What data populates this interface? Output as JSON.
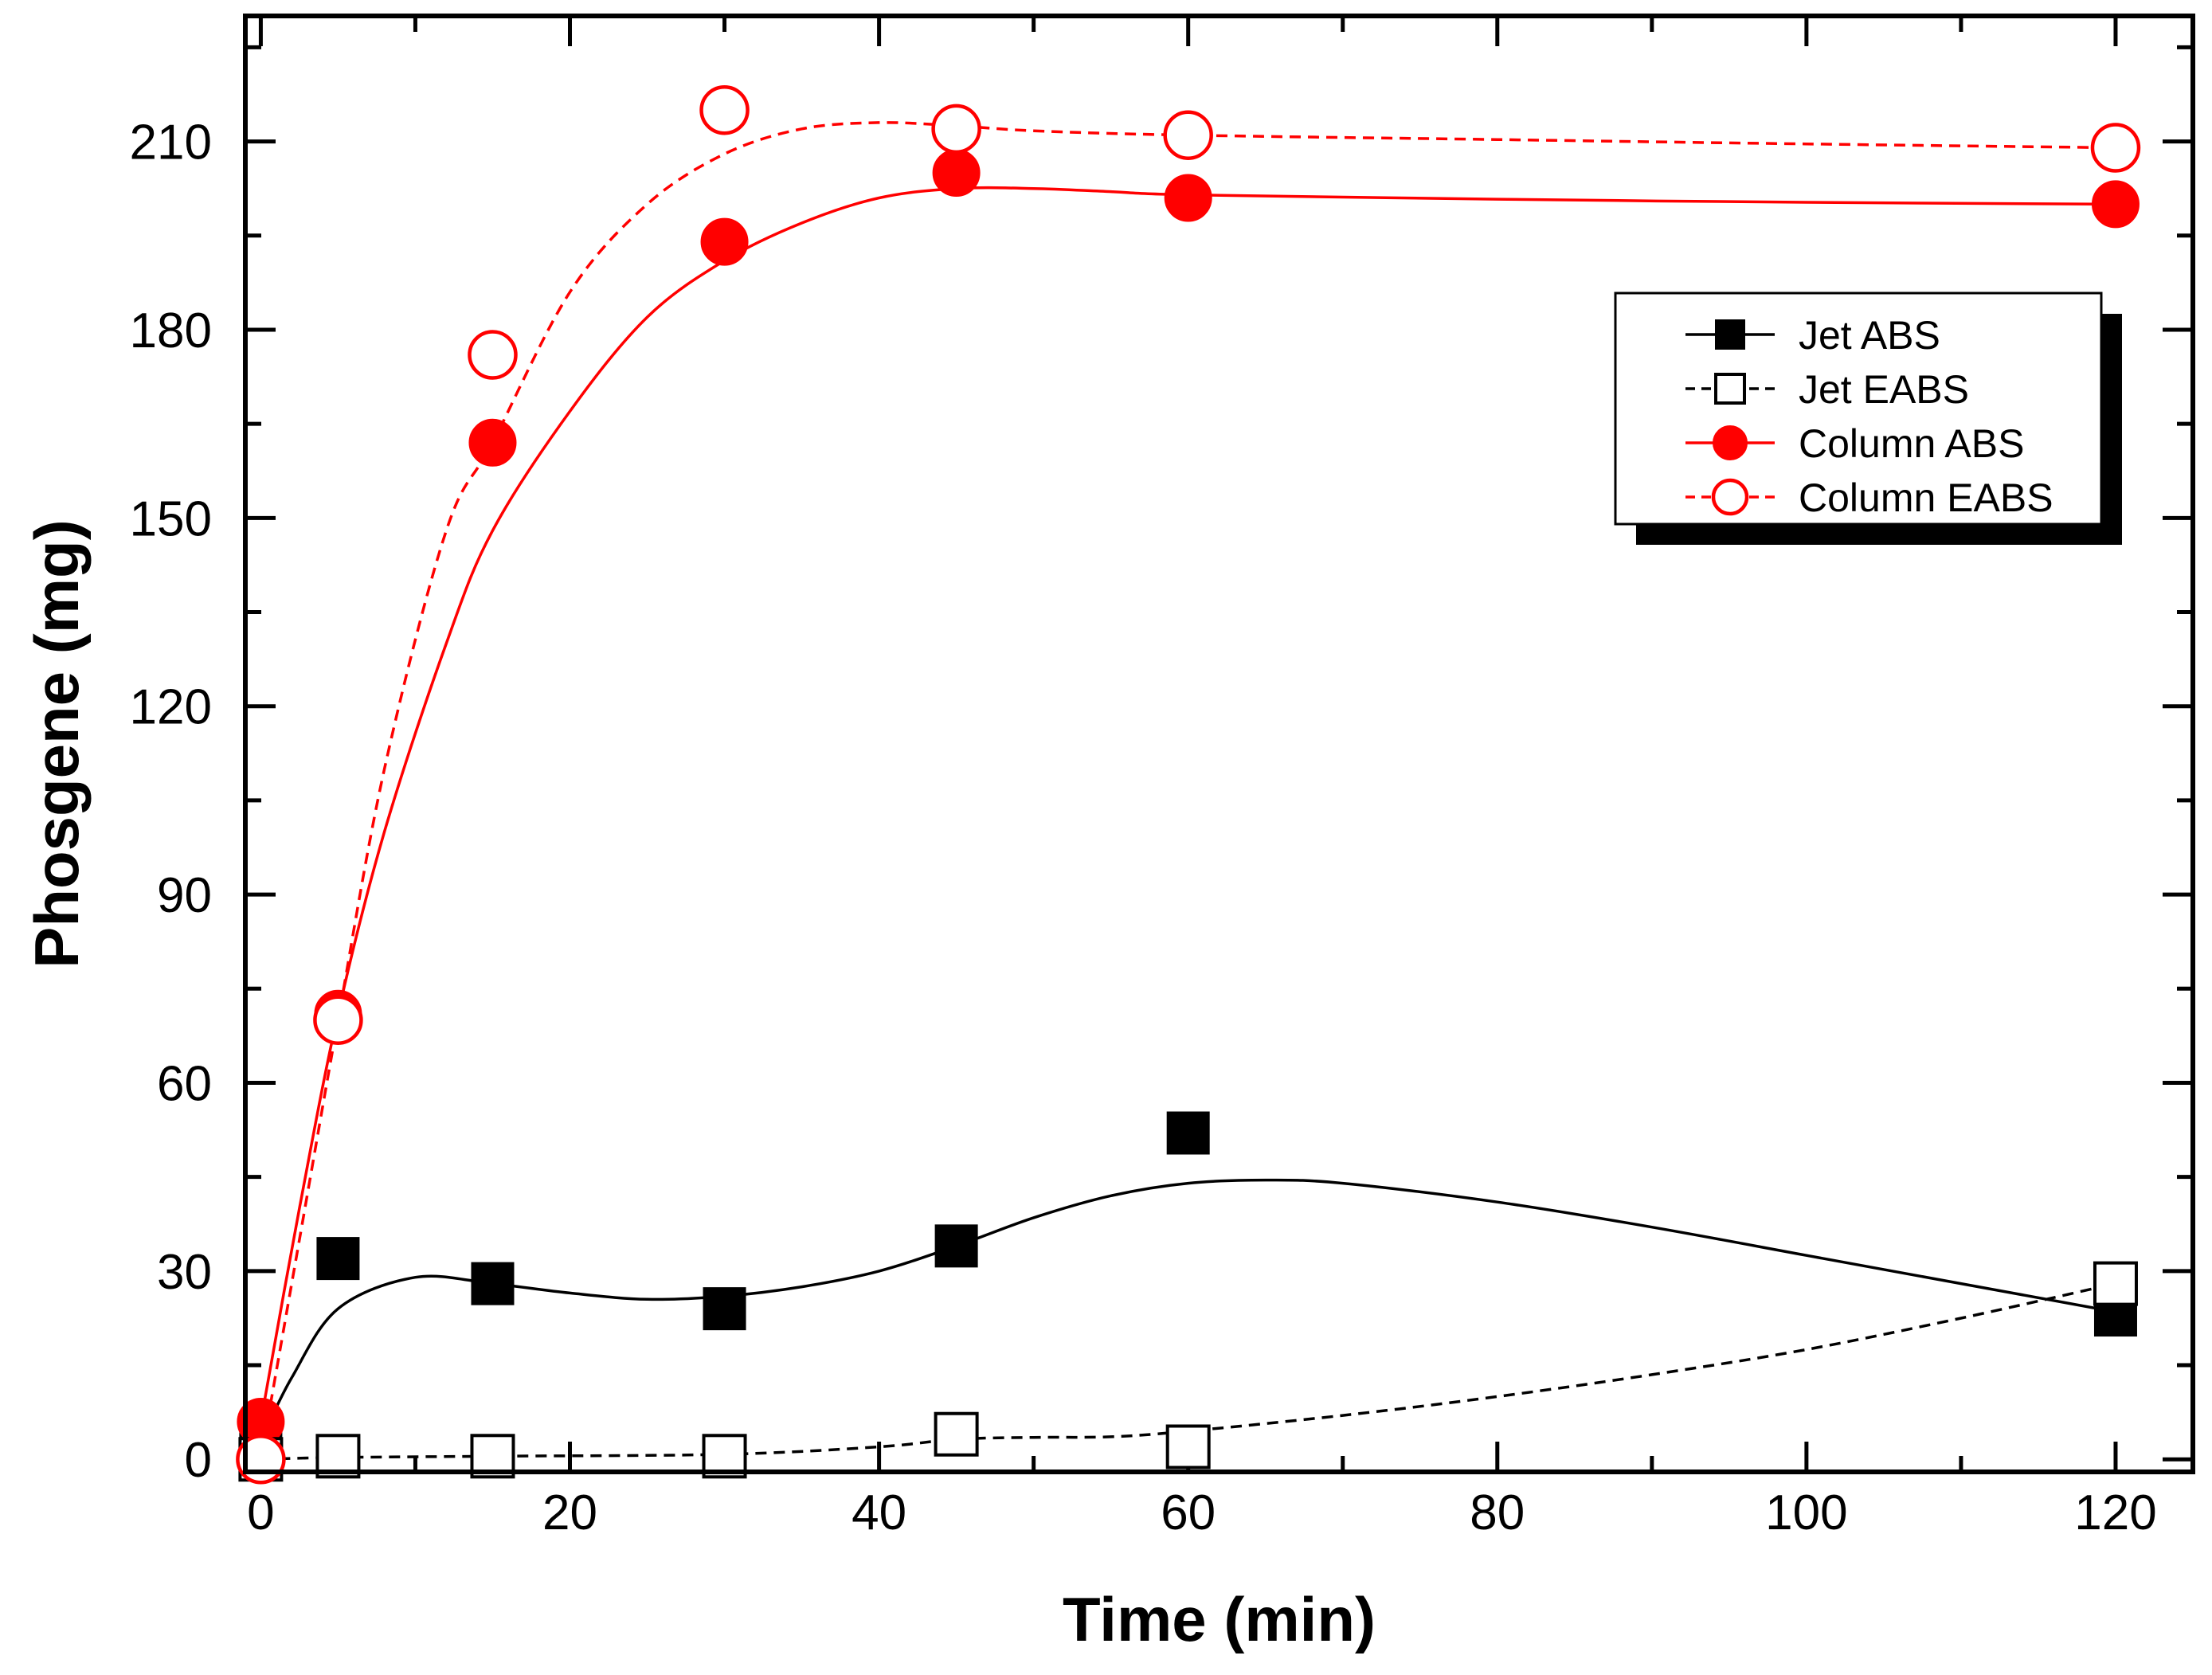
{
  "chart_data": {
    "type": "scatter",
    "title": "",
    "xlabel": "Time (min)",
    "ylabel": "Phosgene (mg)",
    "xlim": [
      -1,
      125
    ],
    "ylim": [
      -2,
      230
    ],
    "x_major_ticks": [
      0,
      20,
      40,
      60,
      80,
      100,
      120
    ],
    "x_minor_ticks": [
      10,
      30,
      50,
      70,
      90,
      110
    ],
    "y_major_ticks": [
      0,
      30,
      60,
      90,
      120,
      150,
      180,
      210
    ],
    "y_minor_ticks": [
      15,
      45,
      75,
      105,
      135,
      165,
      195,
      225
    ],
    "legend_position": "top-right",
    "colors": {
      "black": "#000000",
      "red": "#ff0000"
    },
    "series": [
      {
        "name": "Jet ABS",
        "marker": "square-filled",
        "color": "#000000",
        "line": "solid",
        "points": [
          [
            0,
            3
          ],
          [
            5,
            32
          ],
          [
            15,
            28
          ],
          [
            30,
            24
          ],
          [
            45,
            34
          ],
          [
            60,
            52
          ],
          [
            120,
            23
          ]
        ],
        "fit": [
          [
            0,
            3
          ],
          [
            2,
            13
          ],
          [
            5,
            24
          ],
          [
            10,
            29
          ],
          [
            15,
            28
          ],
          [
            20,
            26.5
          ],
          [
            25,
            25.5
          ],
          [
            30,
            26
          ],
          [
            35,
            27.5
          ],
          [
            40,
            30
          ],
          [
            45,
            34
          ],
          [
            50,
            38.5
          ],
          [
            55,
            42
          ],
          [
            60,
            44
          ],
          [
            65,
            44.5
          ],
          [
            70,
            44
          ],
          [
            80,
            41
          ],
          [
            90,
            37
          ],
          [
            100,
            32.5
          ],
          [
            110,
            28
          ],
          [
            120,
            23.5
          ]
        ]
      },
      {
        "name": "Jet EABS",
        "marker": "square-open",
        "color": "#000000",
        "line": "dashed",
        "points": [
          [
            0,
            0
          ],
          [
            5,
            0.5
          ],
          [
            15,
            0.5
          ],
          [
            30,
            0.5
          ],
          [
            45,
            4
          ],
          [
            60,
            2
          ],
          [
            120,
            28
          ]
        ],
        "fit": [
          [
            0,
            0
          ],
          [
            5,
            0.3
          ],
          [
            15,
            0.5
          ],
          [
            30,
            0.8
          ],
          [
            40,
            2
          ],
          [
            45,
            3.2
          ],
          [
            50,
            3.5
          ],
          [
            55,
            3.6
          ],
          [
            60,
            4.5
          ],
          [
            70,
            7
          ],
          [
            80,
            10
          ],
          [
            90,
            13.5
          ],
          [
            100,
            17.5
          ],
          [
            110,
            22.5
          ],
          [
            120,
            28
          ]
        ]
      },
      {
        "name": "Column ABS",
        "marker": "circle-filled",
        "color": "#ff0000",
        "line": "solid",
        "points": [
          [
            0,
            6
          ],
          [
            5,
            71
          ],
          [
            15,
            162
          ],
          [
            30,
            194
          ],
          [
            45,
            205
          ],
          [
            60,
            201
          ],
          [
            120,
            200
          ]
        ],
        "fit": [
          [
            0,
            6
          ],
          [
            2.5,
            40
          ],
          [
            5,
            71
          ],
          [
            8,
            100
          ],
          [
            12,
            130
          ],
          [
            15,
            148
          ],
          [
            20,
            167
          ],
          [
            25,
            182
          ],
          [
            30,
            191
          ],
          [
            35,
            197
          ],
          [
            40,
            201
          ],
          [
            45,
            202.5
          ],
          [
            50,
            202.5
          ],
          [
            55,
            202
          ],
          [
            60,
            201.5
          ],
          [
            80,
            200.8
          ],
          [
            100,
            200.3
          ],
          [
            120,
            200
          ]
        ]
      },
      {
        "name": "Column EABS",
        "marker": "circle-open",
        "color": "#ff0000",
        "line": "dashed",
        "points": [
          [
            0,
            0
          ],
          [
            5,
            70
          ],
          [
            15,
            176
          ],
          [
            30,
            215
          ],
          [
            45,
            212
          ],
          [
            60,
            211
          ],
          [
            120,
            209
          ]
        ],
        "fit": [
          [
            0,
            0
          ],
          [
            2.5,
            35
          ],
          [
            5,
            70
          ],
          [
            8,
            110
          ],
          [
            12,
            148
          ],
          [
            15,
            162
          ],
          [
            20,
            186
          ],
          [
            25,
            200
          ],
          [
            30,
            208
          ],
          [
            35,
            212
          ],
          [
            40,
            213
          ],
          [
            45,
            212.5
          ],
          [
            50,
            211.7
          ],
          [
            60,
            211
          ],
          [
            80,
            210.3
          ],
          [
            100,
            209.6
          ],
          [
            120,
            209
          ]
        ]
      }
    ]
  }
}
